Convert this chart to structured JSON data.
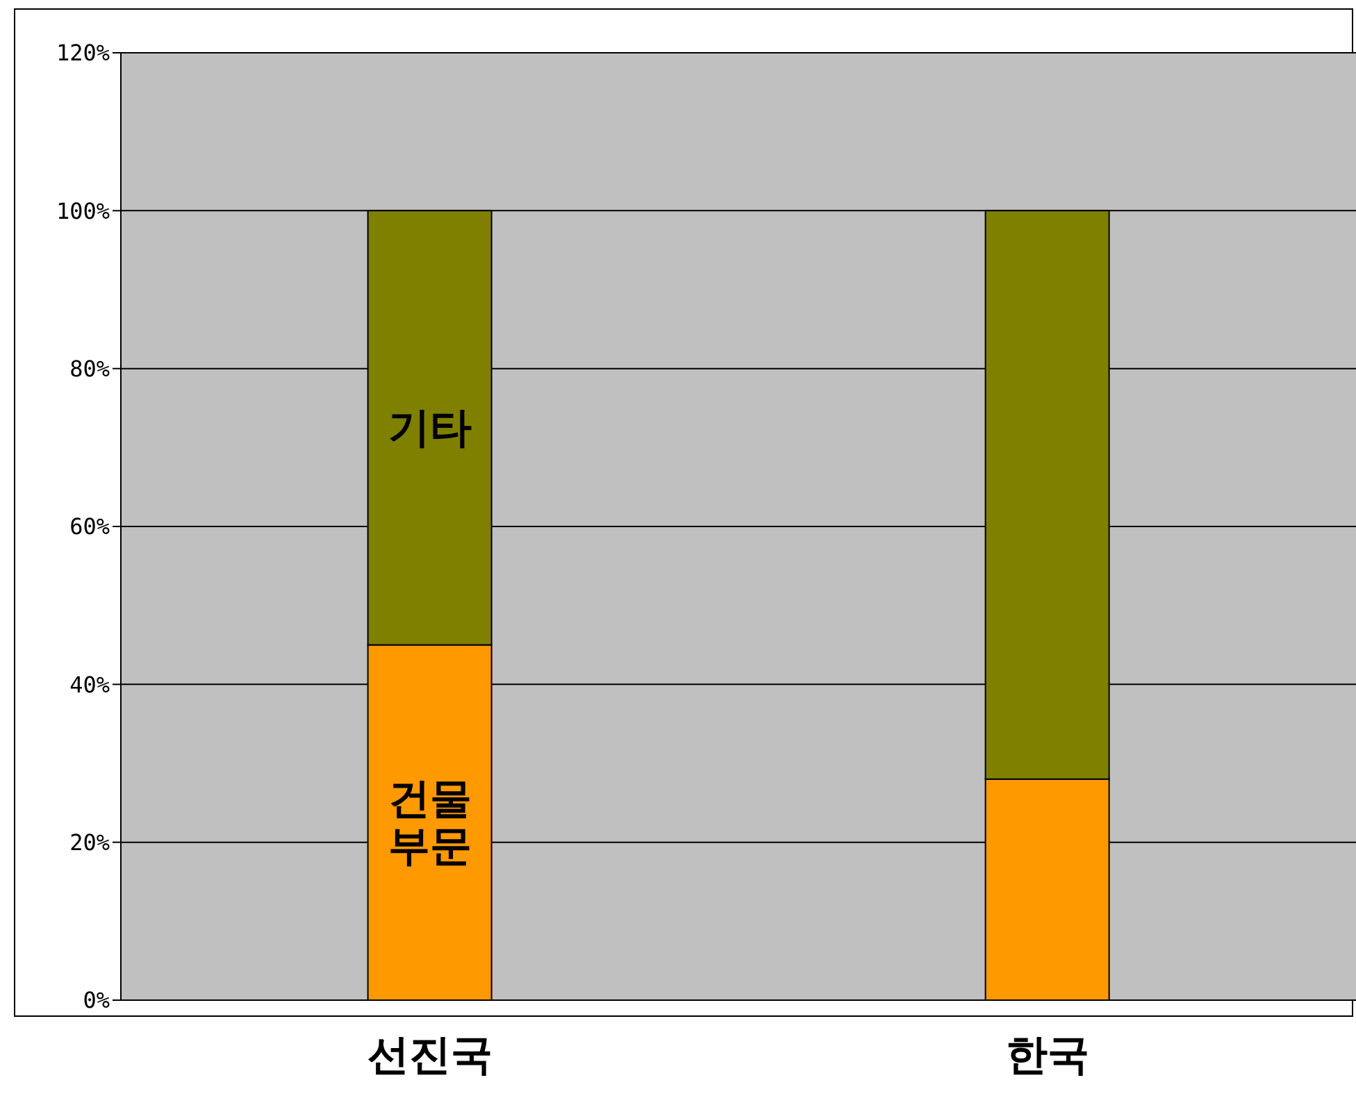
{
  "chart_data": {
    "type": "bar",
    "stacked": true,
    "categories": [
      "선진국",
      "한국"
    ],
    "series": [
      {
        "name": "건물 부문",
        "color": "#ff9900",
        "values": [
          45,
          28
        ]
      },
      {
        "name": "기타",
        "color": "#808000",
        "values": [
          55,
          72
        ]
      }
    ],
    "ylim": [
      0,
      120
    ],
    "yticks": [
      {
        "value": 0,
        "label": "0%"
      },
      {
        "value": 20,
        "label": "20%"
      },
      {
        "value": 40,
        "label": "40%"
      },
      {
        "value": 60,
        "label": "60%"
      },
      {
        "value": 80,
        "label": "80%"
      },
      {
        "value": 100,
        "label": "100%"
      },
      {
        "value": 120,
        "label": "120%"
      }
    ],
    "grid": "y",
    "legend": false
  }
}
